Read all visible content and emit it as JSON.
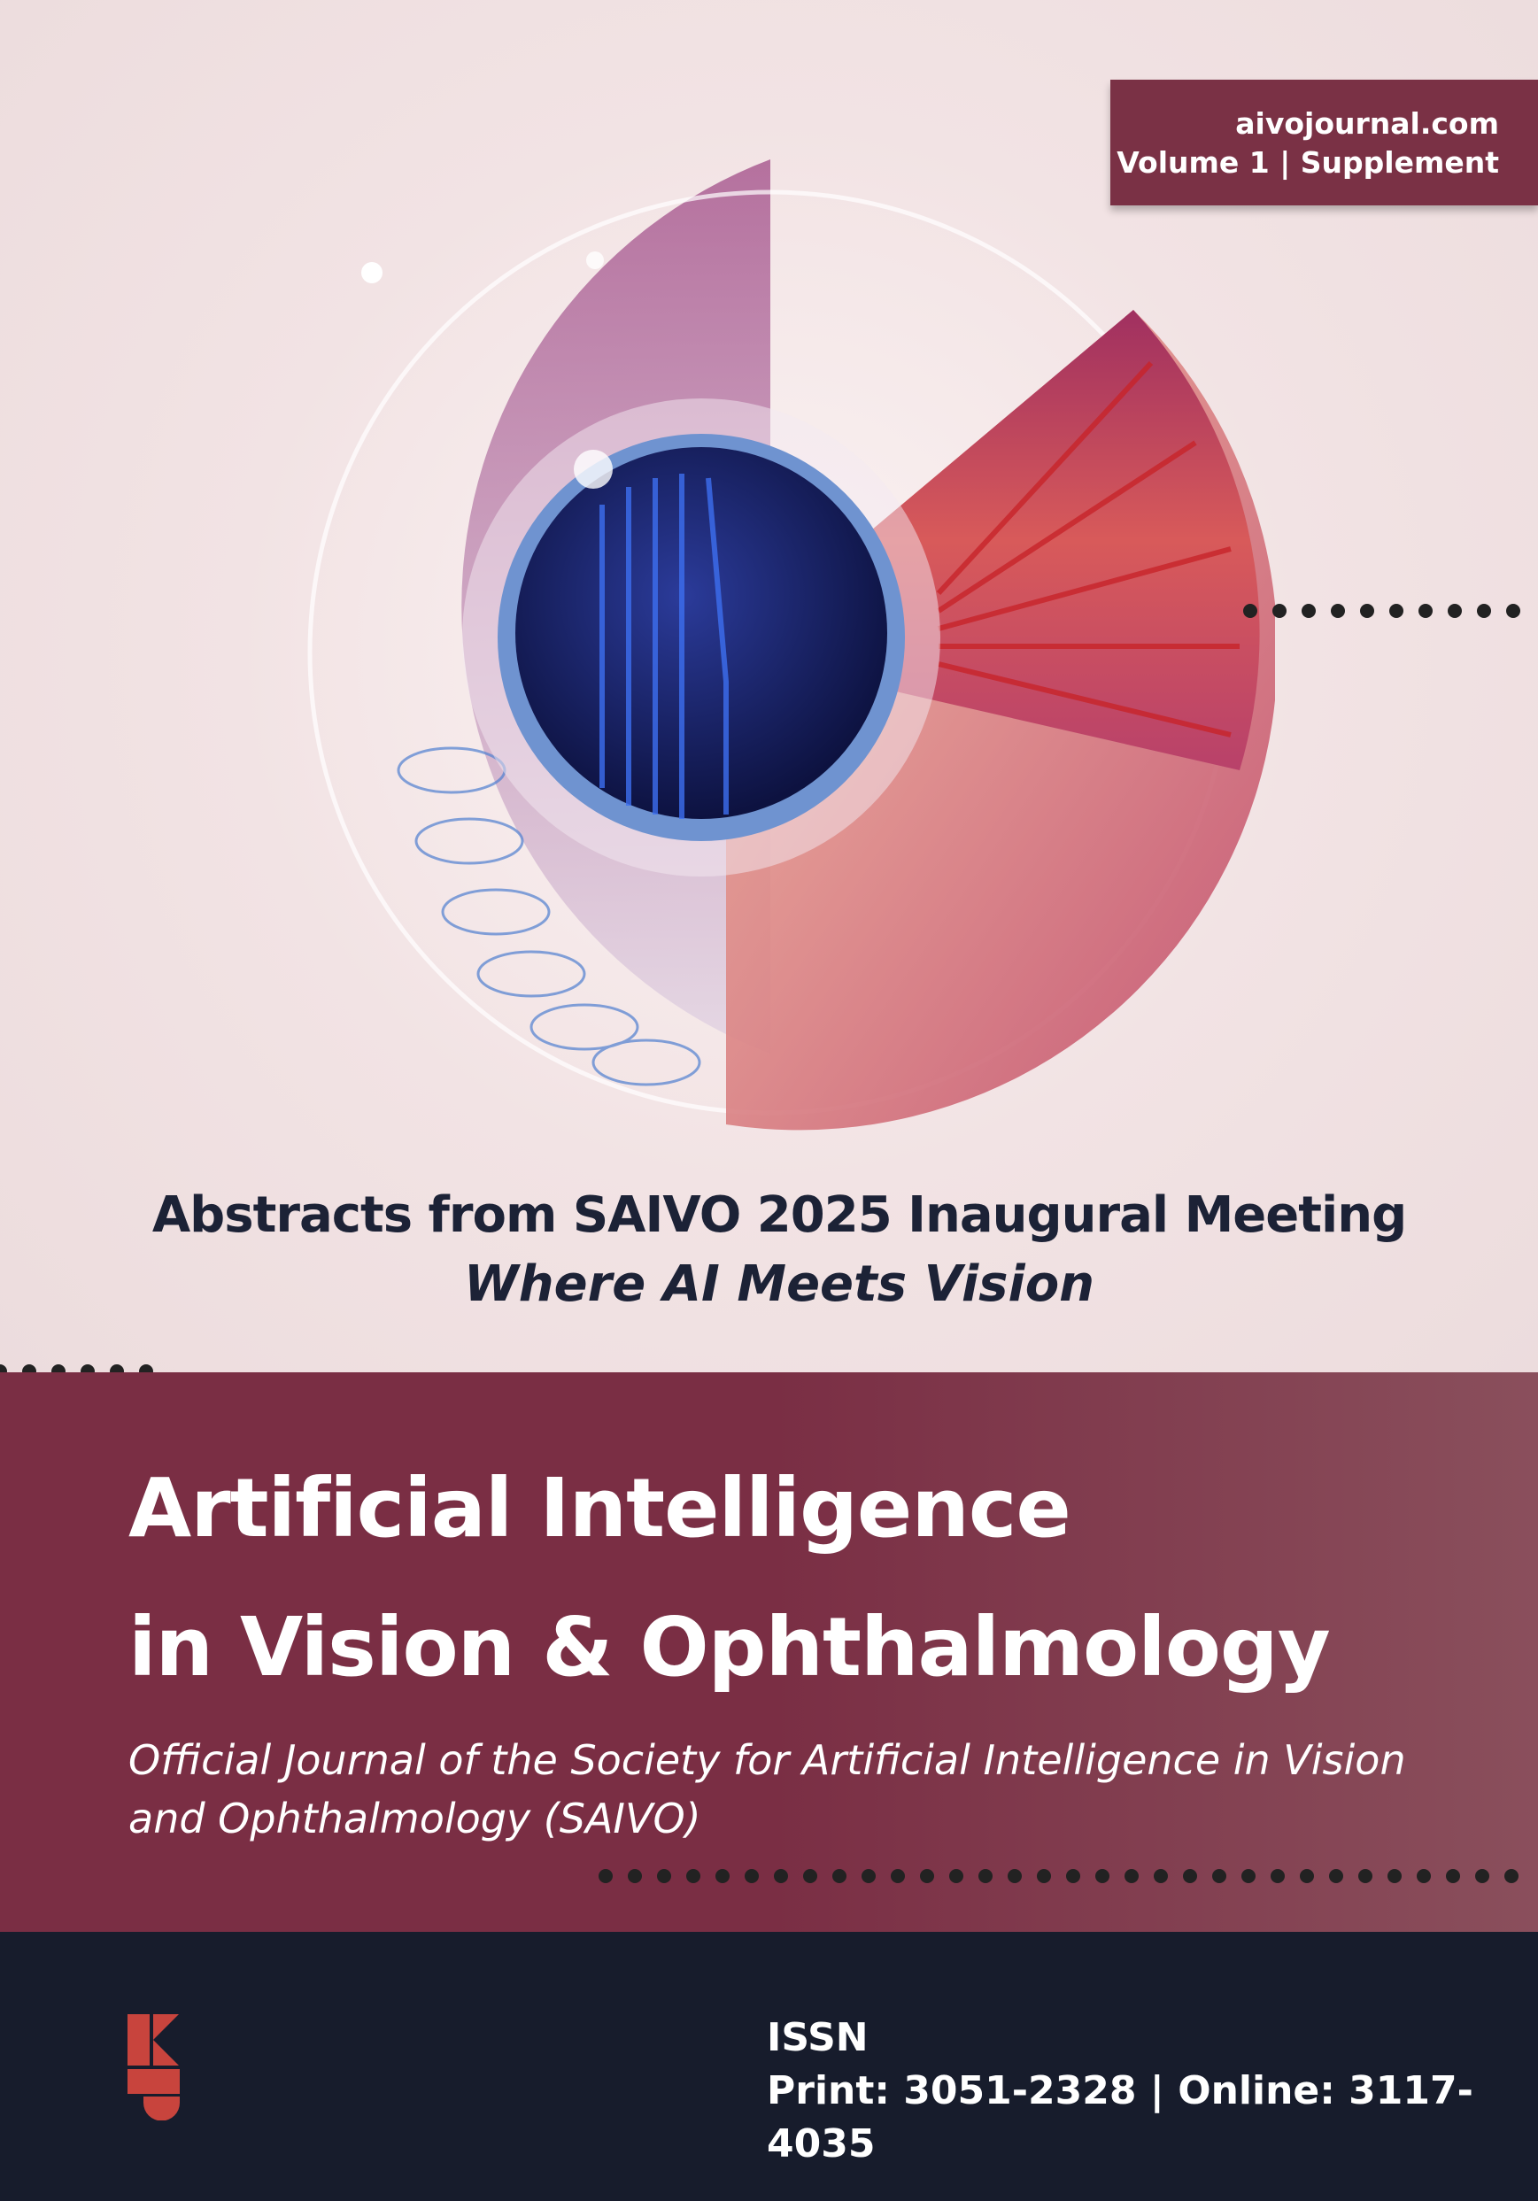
{
  "badge": {
    "site": "aivojournal.com",
    "issue": "Volume 1 | Supplement"
  },
  "heading": {
    "line1": "Abstracts from SAIVO 2025 Inaugural Meeting",
    "line2": "Where AI Meets Vision"
  },
  "journal": {
    "title_line1": "Artificial Intelligence",
    "title_line2": "in Vision & Ophthalmology",
    "subtitle": "Official Journal of the Society for Artificial Intelligence in Vision and Ophthalmology (SAIVO)"
  },
  "footer": {
    "issn_label": "ISSN",
    "issn_numbers": "Print: 3051-2328 | Online: 3117-4035"
  },
  "colors": {
    "maroon": "#7a2e44",
    "navy": "#171c2c",
    "logo_red": "#c8443d",
    "background": "#f0e1e2"
  },
  "icons": {
    "cover_art": "eye-illustration",
    "publisher_logo": "publisher-logo"
  }
}
